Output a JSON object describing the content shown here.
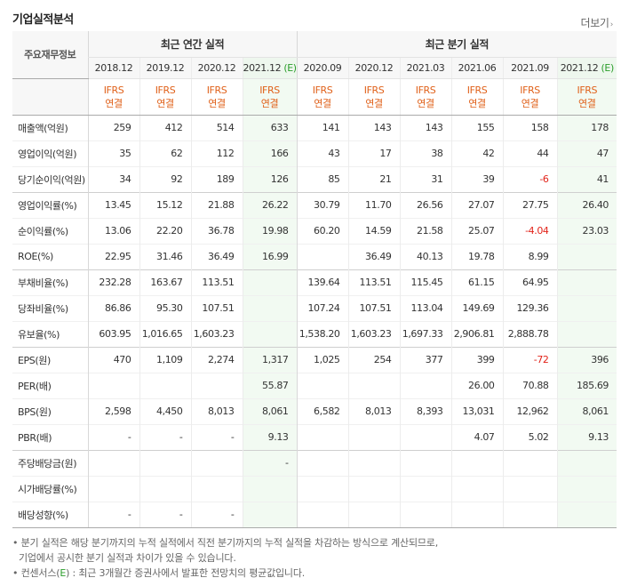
{
  "section": {
    "title": "기업실적분석",
    "more_label": "더보기",
    "more_icon": "chevron-right-icon"
  },
  "header": {
    "corner_label": "주요재무정보",
    "annual_group": "최근 연간 실적",
    "quarter_group": "최근 분기 실적",
    "annual_periods": [
      "2018.12",
      "2019.12",
      "2020.12",
      "2021.12"
    ],
    "quarter_periods": [
      "2020.09",
      "2020.12",
      "2021.03",
      "2021.06",
      "2021.09",
      "2021.12"
    ],
    "estimate_suffix": "(E)",
    "ifrs_line1": "IFRS",
    "ifrs_line2": "연결"
  },
  "rows": [
    {
      "label": "매출액(억원)",
      "annual": [
        "259",
        "412",
        "514",
        "633"
      ],
      "quarter": [
        "141",
        "143",
        "143",
        "155",
        "158",
        "178"
      ]
    },
    {
      "label": "영업이익(억원)",
      "annual": [
        "35",
        "62",
        "112",
        "166"
      ],
      "quarter": [
        "43",
        "17",
        "38",
        "42",
        "44",
        "47"
      ]
    },
    {
      "label": "당기순이익(억원)",
      "annual": [
        "34",
        "92",
        "189",
        "126"
      ],
      "quarter": [
        "85",
        "21",
        "31",
        "39",
        "-6",
        "41"
      ]
    },
    {
      "label": "영업이익률(%)",
      "annual": [
        "13.45",
        "15.12",
        "21.88",
        "26.22"
      ],
      "quarter": [
        "30.79",
        "11.70",
        "26.56",
        "27.07",
        "27.75",
        "26.40"
      ]
    },
    {
      "label": "순이익률(%)",
      "annual": [
        "13.06",
        "22.20",
        "36.78",
        "19.98"
      ],
      "quarter": [
        "60.20",
        "14.59",
        "21.58",
        "25.07",
        "-4.04",
        "23.03"
      ]
    },
    {
      "label": "ROE(%)",
      "annual": [
        "22.95",
        "31.46",
        "36.49",
        "16.99"
      ],
      "quarter": [
        "",
        "36.49",
        "40.13",
        "19.78",
        "8.99",
        ""
      ]
    },
    {
      "label": "부채비율(%)",
      "annual": [
        "232.28",
        "163.67",
        "113.51",
        ""
      ],
      "quarter": [
        "139.64",
        "113.51",
        "115.45",
        "61.15",
        "64.95",
        ""
      ]
    },
    {
      "label": "당좌비율(%)",
      "annual": [
        "86.86",
        "95.30",
        "107.51",
        ""
      ],
      "quarter": [
        "107.24",
        "107.51",
        "113.04",
        "149.69",
        "129.36",
        ""
      ]
    },
    {
      "label": "유보율(%)",
      "annual": [
        "603.95",
        "1,016.65",
        "1,603.23",
        ""
      ],
      "quarter": [
        "1,538.20",
        "1,603.23",
        "1,697.33",
        "2,906.81",
        "2,888.78",
        ""
      ]
    },
    {
      "label": "EPS(원)",
      "annual": [
        "470",
        "1,109",
        "2,274",
        "1,317"
      ],
      "quarter": [
        "1,025",
        "254",
        "377",
        "399",
        "-72",
        "396"
      ]
    },
    {
      "label": "PER(배)",
      "annual": [
        "",
        "",
        "",
        "55.87"
      ],
      "quarter": [
        "",
        "",
        "",
        "26.00",
        "70.88",
        "185.69"
      ]
    },
    {
      "label": "BPS(원)",
      "annual": [
        "2,598",
        "4,450",
        "8,013",
        "8,061"
      ],
      "quarter": [
        "6,582",
        "8,013",
        "8,393",
        "13,031",
        "12,962",
        "8,061"
      ]
    },
    {
      "label": "PBR(배)",
      "annual": [
        "-",
        "-",
        "-",
        "9.13"
      ],
      "quarter": [
        "",
        "",
        "",
        "4.07",
        "5.02",
        "9.13"
      ]
    },
    {
      "label": "주당배당금(원)",
      "annual": [
        "",
        "",
        "",
        "-"
      ],
      "quarter": [
        "",
        "",
        "",
        "",
        "",
        ""
      ]
    },
    {
      "label": "시가배당률(%)",
      "annual": [
        "",
        "",
        "",
        ""
      ],
      "quarter": [
        "",
        "",
        "",
        "",
        "",
        ""
      ]
    },
    {
      "label": "배당성향(%)",
      "annual": [
        "-",
        "-",
        "-",
        ""
      ],
      "quarter": [
        "",
        "",
        "",
        "",
        "",
        ""
      ]
    }
  ],
  "notes": {
    "line1": "• 분기 실적은 해당 분기까지의 누적 실적에서 직전 분기까지의 누적 실적을 차감하는 방식으로 계산되므로,",
    "line2": "기업에서 공시한 분기 실적과 차이가 있을 수 있습니다.",
    "line3_pre": "• 컨센서스(",
    "line3_e": "E",
    "line3_post": ") : 최근 3개월간 증권사에서 발표한 전망치의 평균값입니다."
  },
  "colors": {
    "estimate_bg": "#f2faf2",
    "ifrs_orange": "#e0611a",
    "negative_red": "#e2231a",
    "estimate_green": "#2a9d2a"
  }
}
